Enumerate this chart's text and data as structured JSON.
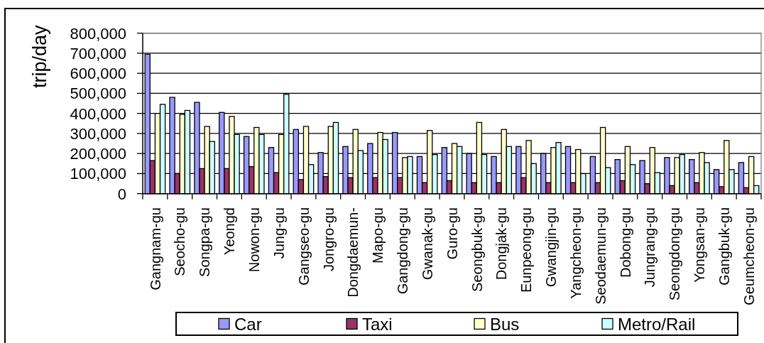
{
  "chart_data": {
    "type": "bar",
    "ylabel": "trip/day",
    "categories": [
      "Gangnam-gu",
      "Seocho-gu",
      "Songpa-gu",
      "Yeongd",
      "Nowon-gu",
      "Jung-gu",
      "Gangseo-gu",
      "Jongro-gu",
      "Dongdaemun-",
      "Mapo-gu",
      "Gangdong-gu",
      "Gwanak-gu",
      "Guro-gu",
      "Seongbuk-gu",
      "Dongjak-gu",
      "Eunpeong-gu",
      "Gwangjin-gu",
      "Yangcheon-gu",
      "Seodaemun-gu",
      "Dobong-gu",
      "Jungrang-gu",
      "Seongdong-gu",
      "Yongsan-gu",
      "Gangbuk-gu",
      "Geumcheon-gu"
    ],
    "series": [
      {
        "name": "Car",
        "color": "#9999ff",
        "values": [
          695000,
          480000,
          455000,
          405000,
          285000,
          230000,
          320000,
          205000,
          235000,
          250000,
          305000,
          185000,
          230000,
          200000,
          185000,
          235000,
          200000,
          235000,
          185000,
          170000,
          165000,
          180000,
          170000,
          120000,
          155000
        ]
      },
      {
        "name": "Taxi",
        "color": "#993366",
        "values": [
          165000,
          100000,
          125000,
          125000,
          135000,
          105000,
          70000,
          85000,
          80000,
          80000,
          80000,
          55000,
          65000,
          55000,
          55000,
          80000,
          55000,
          55000,
          55000,
          65000,
          50000,
          40000,
          55000,
          35000,
          30000
        ]
      },
      {
        "name": "Bus",
        "color": "#ffffcc",
        "values": [
          400000,
          395000,
          335000,
          385000,
          330000,
          295000,
          335000,
          335000,
          320000,
          305000,
          180000,
          315000,
          250000,
          355000,
          320000,
          265000,
          230000,
          220000,
          330000,
          235000,
          230000,
          180000,
          205000,
          265000,
          185000
        ]
      },
      {
        "name": "Metro/Rail",
        "color": "#ccffff",
        "values": [
          445000,
          415000,
          260000,
          295000,
          295000,
          495000,
          145000,
          355000,
          215000,
          270000,
          185000,
          195000,
          235000,
          195000,
          235000,
          150000,
          255000,
          100000,
          130000,
          145000,
          105000,
          195000,
          155000,
          120000,
          40000
        ]
      }
    ],
    "ylim": [
      0,
      800000
    ],
    "yticks": [
      0,
      {
        "value": 100000,
        "label": "100,000"
      },
      {
        "value": 200000,
        "label": "200,000"
      },
      {
        "value": 300000,
        "label": "300,000"
      },
      {
        "value": 400000,
        "label": "400,000"
      },
      {
        "value": 500000,
        "label": "500,000"
      },
      {
        "value": 600000,
        "label": "600,000"
      },
      {
        "value": 700000,
        "label": "700,000"
      },
      {
        "value": 800000,
        "label": "800,000"
      }
    ],
    "grid": "y",
    "legend": "bottom"
  }
}
